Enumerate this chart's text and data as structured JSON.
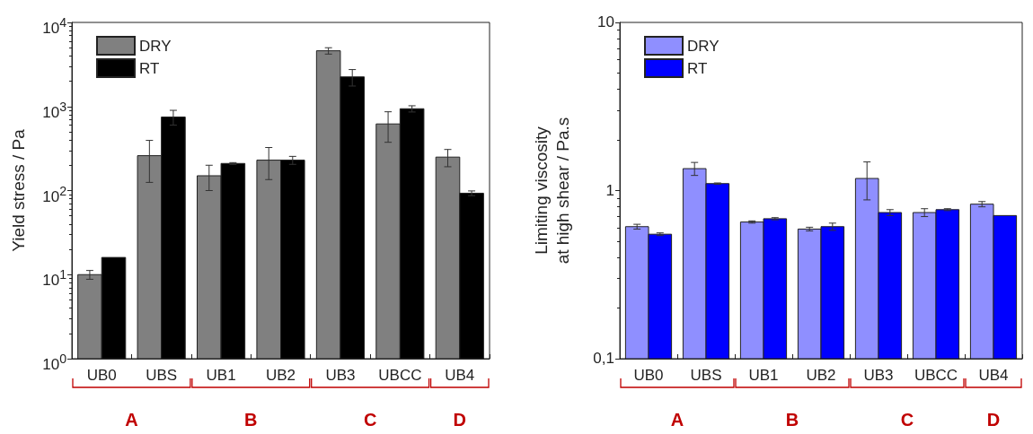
{
  "chart_data": [
    {
      "type": "bar",
      "ylabel": "Yield stress / Pa",
      "categories": [
        "UB0",
        "UBS",
        "UB1",
        "UB2",
        "UB3",
        "UBCC",
        "UB4"
      ],
      "log": "y",
      "ylim": [
        1,
        10000
      ],
      "yticks": [
        {
          "value": 1,
          "label": "10$^{0}$"
        },
        {
          "value": 10,
          "label": "10$^{1}$"
        },
        {
          "value": 100,
          "label": "10$^{2}$"
        },
        {
          "value": 1000,
          "label": "10$^{3}$"
        },
        {
          "value": 10000,
          "label": "10$^{4}$"
        }
      ],
      "legend": "top left",
      "grid": false,
      "annotations": [
        "A",
        "B",
        "C",
        "D"
      ],
      "series": [
        {
          "name": "DRY",
          "color": "#808080",
          "values": [
            10,
            260,
            150,
            230,
            4600,
            620,
            250
          ],
          "errors": [
            1.2,
            135,
            50,
            95,
            400,
            245,
            58
          ]
        },
        {
          "name": "RT",
          "color": "#000000",
          "values": [
            16,
            750,
            210,
            230,
            2250,
            940,
            93
          ],
          "errors": [
            null,
            150,
            5,
            25,
            500,
            80,
            6
          ]
        }
      ]
    },
    {
      "type": "bar",
      "ylabel": "Limiting viscosity\nat high shear / Pa.s",
      "categories": [
        "UB0",
        "UBS",
        "UB1",
        "UB2",
        "UB3",
        "UBCC",
        "UB4"
      ],
      "log": "y",
      "ylim": [
        0.1,
        10
      ],
      "yticks": [
        {
          "value": 0.1,
          "label": "0,1"
        },
        1,
        10
      ],
      "legend": "top left",
      "grid": false,
      "annotations": [
        "A",
        "B",
        "C",
        "D"
      ],
      "series": [
        {
          "name": "DRY",
          "color": "#8f8fff",
          "values": [
            0.61,
            1.35,
            0.65,
            0.59,
            1.18,
            0.74,
            0.83
          ],
          "errors": [
            0.02,
            0.12,
            0.01,
            0.015,
            0.3,
            0.04,
            0.03
          ]
        },
        {
          "name": "RT",
          "color": "#0000ff",
          "values": [
            0.55,
            1.1,
            0.68,
            0.61,
            0.74,
            0.77,
            0.71
          ],
          "errors": [
            0.01,
            0.01,
            0.01,
            0.03,
            0.03,
            0.01,
            null
          ]
        }
      ]
    }
  ]
}
